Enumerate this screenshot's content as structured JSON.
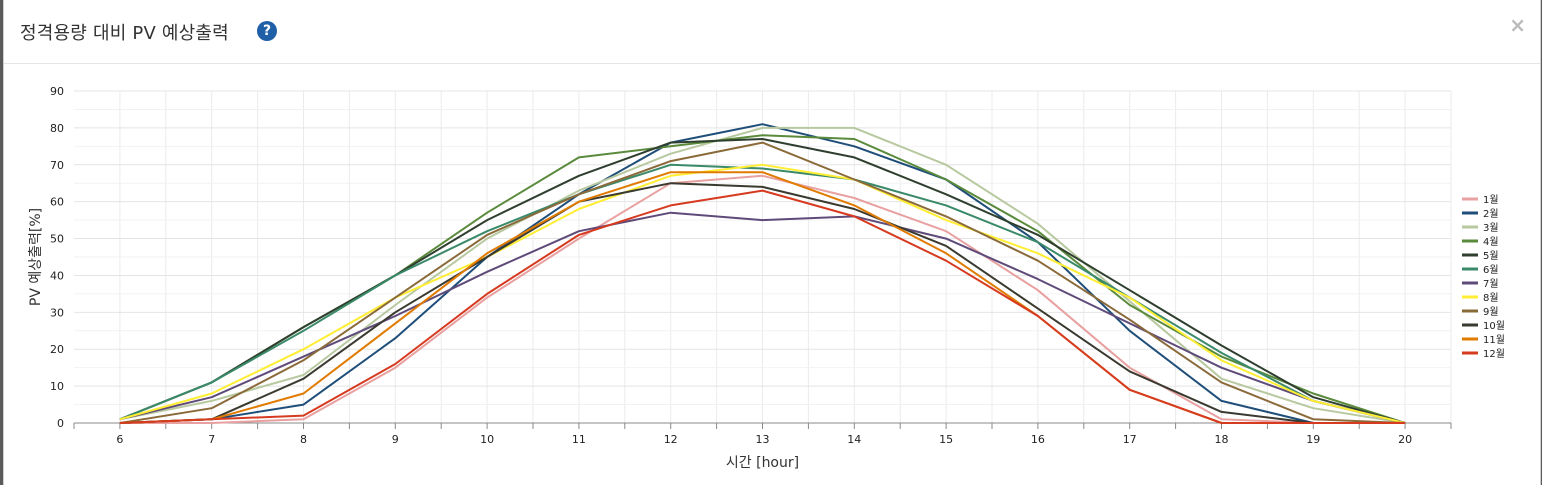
{
  "modal": {
    "title": "정격용량 대비 PV 예상출력",
    "help_icon": "question-circle-icon",
    "help_glyph": "?",
    "close_glyph": "×"
  },
  "chart_data": {
    "type": "line",
    "title": "",
    "xlabel": "시간 [hour]",
    "ylabel": "PV 예상출력[%]",
    "x": [
      6,
      7,
      8,
      9,
      10,
      11,
      12,
      13,
      14,
      15,
      16,
      17,
      18,
      19,
      20
    ],
    "xlim": [
      5.5,
      20.5
    ],
    "ylim": [
      0,
      90
    ],
    "yticks": [
      0,
      10,
      20,
      30,
      40,
      50,
      60,
      70,
      80,
      90
    ],
    "grid": true,
    "legend_position": "right",
    "series": [
      {
        "name": "1월",
        "color": "#e8a0a0",
        "values": [
          0,
          0,
          1,
          15,
          34,
          50,
          65,
          67,
          61,
          52,
          36,
          15,
          1,
          0,
          0
        ]
      },
      {
        "name": "2월",
        "color": "#1f4e79",
        "values": [
          0,
          1,
          5,
          23,
          45,
          62,
          76,
          81,
          75,
          66,
          49,
          25,
          6,
          0,
          0
        ]
      },
      {
        "name": "3월",
        "color": "#b8c9a0",
        "values": [
          1,
          6,
          13,
          32,
          50,
          63,
          73,
          80,
          80,
          70,
          54,
          33,
          12,
          4,
          0
        ]
      },
      {
        "name": "4월",
        "color": "#5a8a3c",
        "values": [
          1,
          11,
          26,
          40,
          57,
          72,
          75,
          78,
          77,
          66,
          52,
          32,
          18,
          8,
          0
        ]
      },
      {
        "name": "5월",
        "color": "#2f3f2f",
        "values": [
          1,
          11,
          26,
          40,
          55,
          67,
          76,
          77,
          72,
          62,
          51,
          36,
          21,
          7,
          0
        ]
      },
      {
        "name": "6월",
        "color": "#3a8a6a",
        "values": [
          1,
          11,
          25,
          40,
          52,
          62,
          70,
          69,
          66,
          59,
          49,
          34,
          19,
          6,
          0
        ]
      },
      {
        "name": "7월",
        "color": "#5f4b7a",
        "values": [
          1,
          7,
          18,
          29,
          41,
          52,
          57,
          55,
          56,
          50,
          39,
          27,
          15,
          6,
          0
        ]
      },
      {
        "name": "8월",
        "color": "#ffee33",
        "values": [
          1,
          8,
          20,
          34,
          45,
          58,
          67,
          70,
          66,
          55,
          46,
          34,
          17,
          6,
          0
        ]
      },
      {
        "name": "9월",
        "color": "#8b6a3a",
        "values": [
          0,
          4,
          17,
          34,
          51,
          62,
          71,
          76,
          66,
          56,
          44,
          28,
          11,
          1,
          0
        ]
      },
      {
        "name": "10월",
        "color": "#3a3a30",
        "values": [
          0,
          1,
          12,
          30,
          45,
          60,
          65,
          64,
          58,
          48,
          31,
          14,
          3,
          0,
          0
        ]
      },
      {
        "name": "11월",
        "color": "#e07b00",
        "values": [
          0,
          1,
          8,
          27,
          46,
          60,
          68,
          68,
          59,
          46,
          29,
          9,
          0,
          0,
          0
        ]
      },
      {
        "name": "12월",
        "color": "#d63a1f",
        "values": [
          0,
          1,
          2,
          16,
          35,
          51,
          59,
          63,
          56,
          44,
          29,
          9,
          0,
          0,
          0
        ]
      }
    ]
  }
}
